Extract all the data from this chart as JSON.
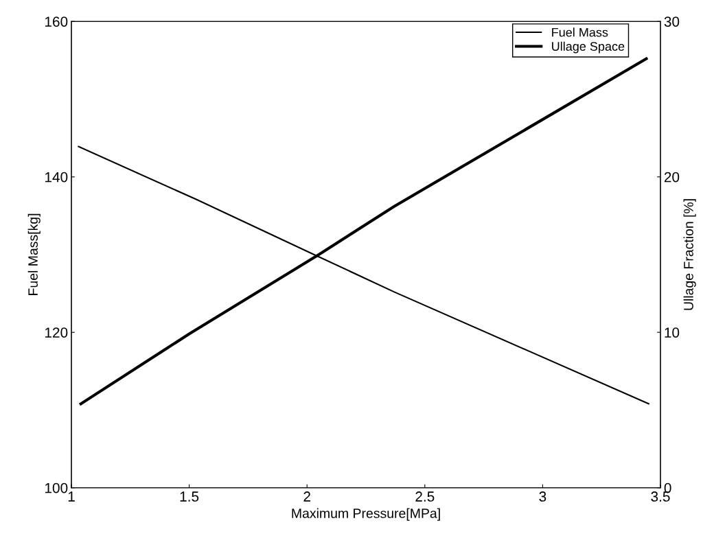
{
  "chart_data": {
    "type": "line",
    "xlabel": "Maximum Pressure[MPa]",
    "ylabel": "Fuel Mass[kg]",
    "y2label": "Ullage Fraction [%]",
    "xlim": [
      1,
      3.5
    ],
    "xticks": [
      1,
      1.5,
      2,
      2.5,
      3,
      3.5
    ],
    "ylim": [
      100,
      160
    ],
    "yticks": [
      100,
      120,
      140,
      160
    ],
    "y2lim": [
      0,
      30
    ],
    "y2ticks": [
      0,
      10,
      20,
      30
    ],
    "legend": "top right",
    "grid": false,
    "line_style": "solid",
    "marker": "none",
    "series": [
      {
        "name": "Fuel Mass",
        "color": "#000000",
        "x": [
          1.03,
          1.53,
          2.03,
          2.37,
          3.45
        ],
        "values": [
          143.9,
          137.1,
          130.0,
          125.2,
          110.8
        ]
      },
      {
        "name": "Ullage Space",
        "color": "#000000",
        "axis": "y2",
        "x": [
          1.04,
          1.5,
          2.05,
          2.37,
          3.44
        ],
        "values": [
          5.4,
          9.9,
          15.0,
          18.1,
          27.6
        ]
      }
    ]
  }
}
